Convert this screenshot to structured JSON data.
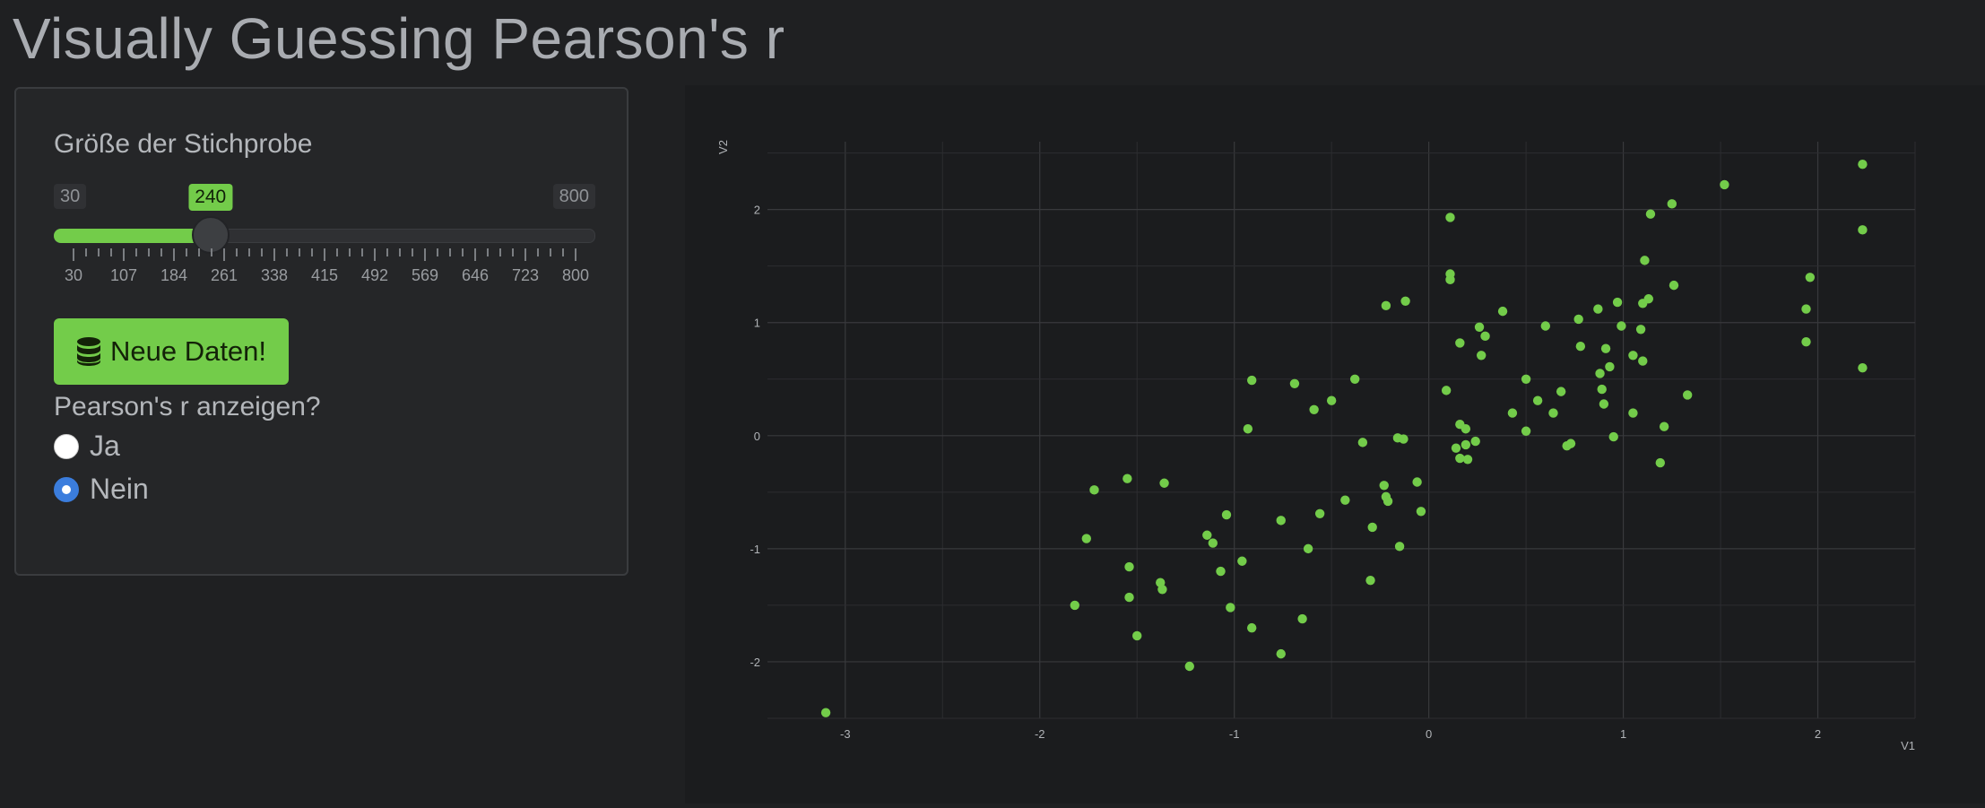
{
  "title": "Visually Guessing Pearson's r",
  "sidebar": {
    "slider_label": "Größe der Stichprobe",
    "slider": {
      "min": 30,
      "max": 800,
      "value": 240,
      "min_label": "30",
      "max_label": "800",
      "value_label": "240",
      "tick_labels": [
        "30",
        "107",
        "184",
        "261",
        "338",
        "415",
        "492",
        "569",
        "646",
        "723",
        "800"
      ]
    },
    "button_label": "Neue Daten!",
    "button_icon": "database-icon",
    "radio_title": "Pearson's r anzeigen?",
    "radio_options": [
      {
        "label": "Ja",
        "checked": false
      },
      {
        "label": "Nein",
        "checked": true
      }
    ]
  },
  "colors": {
    "accent": "#73cc4a",
    "background": "#1f2022",
    "radio_selected": "#3b7ddd"
  },
  "chart_data": {
    "type": "scatter",
    "xlabel": "V1",
    "ylabel": "V2",
    "xlim": [
      -3.4,
      2.5
    ],
    "ylim": [
      -2.5,
      2.6
    ],
    "xticks": [
      -3,
      -2,
      -1,
      0,
      1,
      2
    ],
    "yticks": [
      -2,
      -1,
      0,
      1,
      2
    ],
    "grid": true,
    "points": [
      [
        -3.1,
        -2.45
      ],
      [
        -1.82,
        -1.5
      ],
      [
        -1.72,
        -0.48
      ],
      [
        -1.76,
        -0.91
      ],
      [
        -1.55,
        -0.38
      ],
      [
        -1.54,
        -1.16
      ],
      [
        -1.54,
        -1.43
      ],
      [
        -1.5,
        -1.77
      ],
      [
        -1.36,
        -0.42
      ],
      [
        -1.38,
        -1.3
      ],
      [
        -1.37,
        -1.36
      ],
      [
        -1.23,
        -2.04
      ],
      [
        -1.14,
        -0.88
      ],
      [
        -1.11,
        -0.95
      ],
      [
        -1.07,
        -1.2
      ],
      [
        -1.04,
        -0.7
      ],
      [
        -1.02,
        -1.52
      ],
      [
        -0.96,
        -1.11
      ],
      [
        -0.93,
        0.06
      ],
      [
        -0.91,
        0.49
      ],
      [
        -0.91,
        -1.7
      ],
      [
        -0.76,
        -0.75
      ],
      [
        -0.76,
        -1.93
      ],
      [
        -0.69,
        0.46
      ],
      [
        -0.65,
        -1.62
      ],
      [
        -0.62,
        -1.0
      ],
      [
        -0.59,
        0.23
      ],
      [
        -0.56,
        -0.69
      ],
      [
        -0.5,
        0.31
      ],
      [
        -0.43,
        -0.57
      ],
      [
        -0.38,
        0.5
      ],
      [
        -0.34,
        -0.06
      ],
      [
        -0.3,
        -1.28
      ],
      [
        -0.29,
        -0.81
      ],
      [
        -0.23,
        -0.44
      ],
      [
        -0.22,
        -0.54
      ],
      [
        -0.21,
        -0.58
      ],
      [
        -0.22,
        1.15
      ],
      [
        -0.15,
        -0.98
      ],
      [
        -0.16,
        -0.02
      ],
      [
        -0.13,
        -0.03
      ],
      [
        -0.12,
        1.19
      ],
      [
        -0.06,
        -0.41
      ],
      [
        -0.04,
        -0.67
      ],
      [
        0.09,
        0.4
      ],
      [
        0.11,
        1.93
      ],
      [
        0.11,
        1.38
      ],
      [
        0.11,
        1.43
      ],
      [
        0.14,
        -0.11
      ],
      [
        0.16,
        0.1
      ],
      [
        0.16,
        -0.2
      ],
      [
        0.16,
        0.82
      ],
      [
        0.19,
        -0.08
      ],
      [
        0.19,
        0.06
      ],
      [
        0.2,
        -0.21
      ],
      [
        0.24,
        -0.05
      ],
      [
        0.26,
        0.96
      ],
      [
        0.27,
        0.71
      ],
      [
        0.29,
        0.88
      ],
      [
        0.38,
        1.1
      ],
      [
        0.43,
        0.2
      ],
      [
        0.5,
        0.5
      ],
      [
        0.5,
        0.04
      ],
      [
        0.56,
        0.31
      ],
      [
        0.6,
        0.97
      ],
      [
        0.64,
        0.2
      ],
      [
        0.68,
        0.39
      ],
      [
        0.71,
        -0.09
      ],
      [
        0.73,
        -0.07
      ],
      [
        0.77,
        1.03
      ],
      [
        0.78,
        0.79
      ],
      [
        0.87,
        1.12
      ],
      [
        0.88,
        0.55
      ],
      [
        0.89,
        0.41
      ],
      [
        0.9,
        0.28
      ],
      [
        0.91,
        0.77
      ],
      [
        0.93,
        0.61
      ],
      [
        0.95,
        -0.01
      ],
      [
        0.97,
        1.18
      ],
      [
        0.99,
        0.97
      ],
      [
        1.05,
        0.2
      ],
      [
        1.05,
        0.71
      ],
      [
        1.09,
        0.94
      ],
      [
        1.1,
        0.66
      ],
      [
        1.1,
        1.17
      ],
      [
        1.11,
        1.55
      ],
      [
        1.13,
        1.21
      ],
      [
        1.14,
        1.96
      ],
      [
        1.19,
        -0.24
      ],
      [
        1.21,
        0.08
      ],
      [
        1.25,
        2.05
      ],
      [
        1.26,
        1.33
      ],
      [
        1.33,
        0.36
      ],
      [
        1.52,
        2.22
      ],
      [
        1.94,
        0.83
      ],
      [
        1.94,
        1.12
      ],
      [
        1.96,
        1.4
      ],
      [
        2.23,
        2.4
      ],
      [
        2.23,
        1.82
      ],
      [
        2.23,
        0.6
      ]
    ]
  }
}
